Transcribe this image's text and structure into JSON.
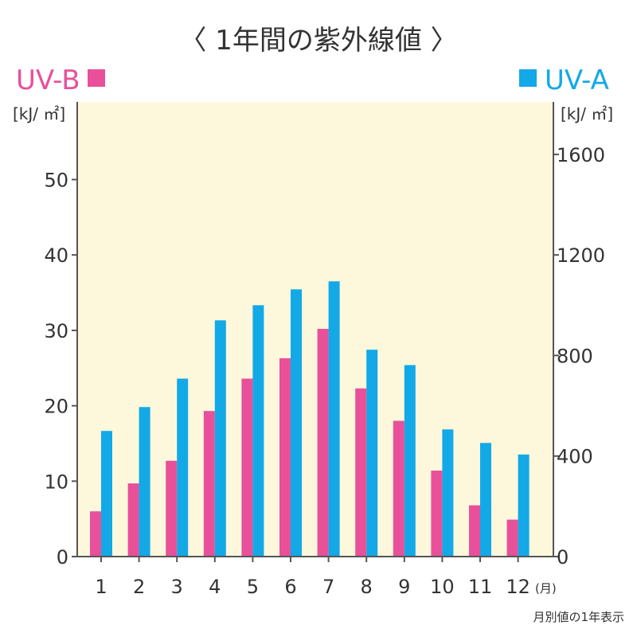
{
  "title": "〈 1年間の紫外線値 〉",
  "footnote": "月別値の1年表示",
  "colors": {
    "uvb": "#e8509a",
    "uva": "#12a9e6",
    "plot_bg": "#fdf8dc",
    "axis": "#555555"
  },
  "chart_data": {
    "type": "bar",
    "title": "〈 1年間の紫外線値 〉",
    "x_unit": "(月)",
    "categories": [
      "1",
      "2",
      "3",
      "4",
      "5",
      "6",
      "7",
      "8",
      "9",
      "10",
      "11",
      "12"
    ],
    "series": [
      {
        "name": "UV-B",
        "axis": "left",
        "unit": "[kJ/ ㎡]",
        "values": [
          6,
          9.7,
          12.7,
          19.3,
          23.6,
          26.3,
          30.2,
          22.3,
          18,
          11.4,
          6.8,
          4.9
        ]
      },
      {
        "name": "UV-A",
        "axis": "right",
        "unit": "[kJ/ ㎡]",
        "values": [
          500,
          595,
          708,
          940,
          1000,
          1063,
          1095,
          823,
          762,
          506,
          452,
          406
        ]
      }
    ],
    "left_axis": {
      "unit": "[kJ/ ㎡]",
      "ylim": [
        0,
        60
      ],
      "ticks": [
        0,
        10,
        20,
        30,
        40,
        50
      ]
    },
    "right_axis": {
      "unit": "[kJ/ ㎡]",
      "ylim": [
        0,
        1800
      ],
      "ticks": [
        0,
        400,
        800,
        1200,
        1600
      ]
    },
    "legend": [
      "UV-B",
      "UV-A"
    ],
    "grid": false
  }
}
